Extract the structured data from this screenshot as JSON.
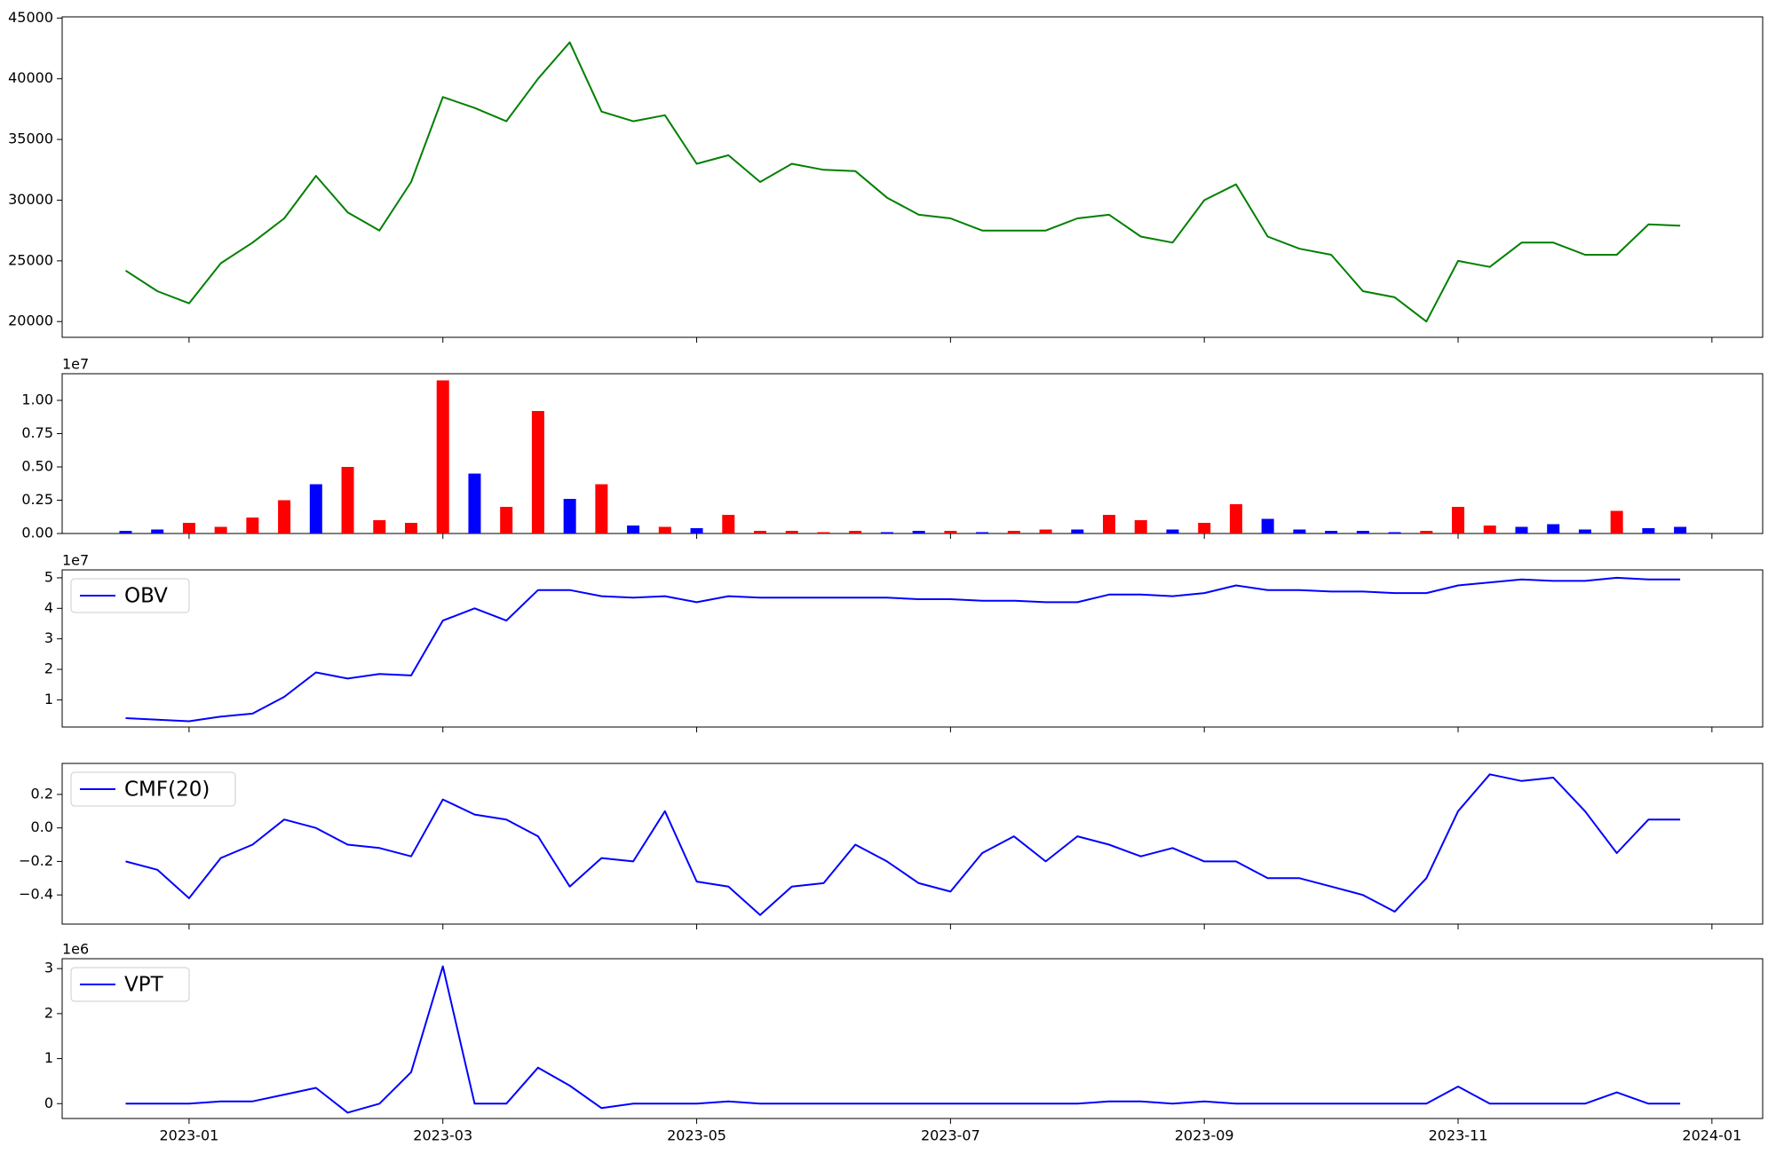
{
  "chart_data": [
    {
      "type": "line",
      "ylim": [
        18700,
        45100
      ],
      "yticks": [
        20000,
        25000,
        30000,
        35000,
        40000,
        45000
      ],
      "series": [
        {
          "color": "#008000",
          "values": [
            24200,
            22500,
            21500,
            24800,
            26500,
            28500,
            32000,
            29000,
            27500,
            31500,
            38500,
            37600,
            36500,
            40000,
            43000,
            37300,
            36500,
            37000,
            33000,
            33700,
            31500,
            33000,
            32500,
            32400,
            30200,
            28800,
            28500,
            27500,
            27500,
            27500,
            28500,
            28800,
            27000,
            26500,
            30000,
            31300,
            27000,
            26000,
            25500,
            22500,
            22000,
            20000,
            25000,
            24500,
            26500,
            26500,
            25500,
            25500,
            28000,
            27900,
            null
          ]
        }
      ]
    },
    {
      "type": "bar",
      "ylim": [
        0,
        1.2
      ],
      "offset_text": "1e7",
      "yticks": [
        {
          "value": 0,
          "label": "0.00"
        },
        {
          "value": 0.25,
          "label": "0.25"
        },
        {
          "value": 0.5,
          "label": "0.50"
        },
        {
          "value": 0.75,
          "label": "0.75"
        },
        {
          "value": 1,
          "label": "1.00"
        }
      ],
      "values": [
        0.02,
        0.03,
        0.08,
        0.05,
        0.12,
        0.25,
        0.37,
        0.5,
        0.1,
        0.08,
        1.15,
        0.45,
        0.2,
        0.92,
        0.26,
        0.37,
        0.06,
        0.05,
        0.04,
        0.14,
        0.02,
        0.02,
        0.01,
        0.02,
        0.01,
        0.02,
        0.02,
        0.01,
        0.02,
        0.03,
        0.03,
        0.14,
        0.1,
        0.03,
        0.08,
        0.22,
        0.11,
        0.03,
        0.02,
        0.02,
        0.01,
        0.02,
        0.2,
        0.06,
        0.05,
        0.07,
        0.03,
        0.17,
        0.04,
        0.05,
        null
      ],
      "colors": [
        "#0000ff",
        "#0000ff",
        "#ff0000",
        "#ff0000",
        "#ff0000",
        "#ff0000",
        "#0000ff",
        "#ff0000",
        "#ff0000",
        "#ff0000",
        "#ff0000",
        "#0000ff",
        "#ff0000",
        "#ff0000",
        "#0000ff",
        "#ff0000",
        "#0000ff",
        "#ff0000",
        "#0000ff",
        "#ff0000",
        "#ff0000",
        "#ff0000",
        "#ff0000",
        "#ff0000",
        "#0000ff",
        "#0000ff",
        "#ff0000",
        "#0000ff",
        "#ff0000",
        "#ff0000",
        "#0000ff",
        "#ff0000",
        "#ff0000",
        "#0000ff",
        "#ff0000",
        "#ff0000",
        "#0000ff",
        "#0000ff",
        "#0000ff",
        "#0000ff",
        "#0000ff",
        "#ff0000",
        "#ff0000",
        "#ff0000",
        "#0000ff",
        "#0000ff",
        "#0000ff",
        "#ff0000",
        "#0000ff",
        "#0000ff",
        null
      ]
    },
    {
      "type": "line",
      "ylim": [
        0.11,
        5.26
      ],
      "yticks": [
        1,
        2,
        3,
        4,
        5
      ],
      "offset_text": "1e7",
      "legend": "upper left",
      "series": [
        {
          "name": "OBV",
          "color": "#0000ff",
          "values": [
            0.4,
            0.35,
            0.3,
            0.45,
            0.55,
            1.1,
            1.9,
            1.7,
            1.85,
            1.8,
            3.6,
            4.0,
            3.6,
            4.6,
            4.6,
            4.4,
            4.35,
            4.4,
            4.2,
            4.4,
            4.35,
            4.35,
            4.35,
            4.35,
            4.35,
            4.3,
            4.3,
            4.25,
            4.25,
            4.2,
            4.2,
            4.45,
            4.45,
            4.4,
            4.5,
            4.75,
            4.6,
            4.6,
            4.55,
            4.55,
            4.5,
            4.5,
            4.75,
            4.85,
            4.95,
            4.9,
            4.9,
            5.0,
            4.95,
            4.95,
            null
          ]
        }
      ]
    },
    {
      "type": "line",
      "ylim": [
        -0.574,
        0.385
      ],
      "legend": "upper left",
      "yticks": [
        {
          "value": -0.4,
          "label": "−0.4"
        },
        {
          "value": -0.2,
          "label": "−0.2"
        },
        {
          "value": 0,
          "label": "0.0"
        },
        {
          "value": 0.2,
          "label": "0.2"
        }
      ],
      "series": [
        {
          "name": "CMF(20)",
          "color": "#0000ff",
          "values": [
            -0.2,
            -0.25,
            -0.42,
            -0.18,
            -0.1,
            0.05,
            0.0,
            -0.1,
            -0.12,
            -0.17,
            0.17,
            0.08,
            0.05,
            -0.05,
            -0.35,
            -0.18,
            -0.2,
            0.1,
            -0.32,
            -0.35,
            -0.52,
            -0.35,
            -0.33,
            -0.1,
            -0.2,
            -0.33,
            -0.38,
            -0.15,
            -0.05,
            -0.2,
            -0.05,
            -0.1,
            -0.17,
            -0.12,
            -0.2,
            -0.2,
            -0.3,
            -0.3,
            -0.35,
            -0.4,
            -0.5,
            -0.3,
            0.1,
            0.32,
            0.28,
            0.3,
            0.1,
            -0.15,
            0.05,
            0.05,
            null
          ]
        }
      ]
    },
    {
      "type": "line",
      "ylim": [
        -0.33,
        3.22
      ],
      "yticks": [
        0,
        1,
        2,
        3
      ],
      "offset_text": "1e6",
      "legend": "upper left",
      "categories": [
        null,
        null,
        "2023-01",
        null,
        null,
        null,
        null,
        null,
        null,
        null,
        "2023-03",
        null,
        null,
        null,
        null,
        null,
        null,
        null,
        "2023-05",
        null,
        null,
        null,
        null,
        null,
        null,
        null,
        "2023-07",
        null,
        null,
        null,
        null,
        null,
        null,
        null,
        "2023-09",
        null,
        null,
        null,
        null,
        null,
        null,
        null,
        "2023-11",
        null,
        null,
        null,
        null,
        null,
        null,
        null,
        "2024-01"
      ],
      "series": [
        {
          "name": "VPT",
          "color": "#0000ff",
          "values": [
            0,
            0,
            0,
            0.05,
            0.05,
            0.2,
            0.35,
            -0.2,
            0,
            0.7,
            3.05,
            0,
            0,
            0.8,
            0.4,
            -0.1,
            0,
            0,
            0,
            0.05,
            0,
            0,
            0,
            0,
            0,
            0,
            0,
            0,
            0,
            0,
            0,
            0.05,
            0.05,
            0,
            0.05,
            0,
            0,
            0,
            0,
            0,
            0,
            0,
            0.38,
            0,
            0,
            0,
            0,
            0.25,
            0,
            0,
            null
          ]
        }
      ]
    }
  ]
}
